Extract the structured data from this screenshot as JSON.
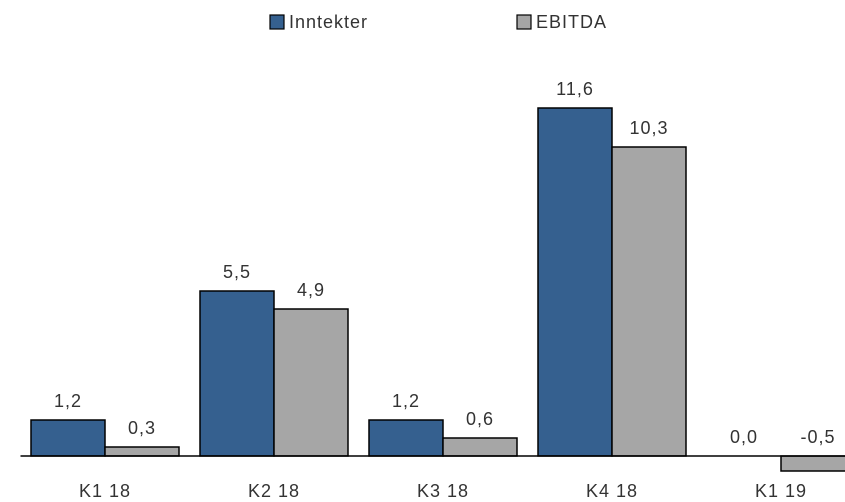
{
  "chart_data": {
    "type": "bar",
    "categories": [
      "K1 18",
      "K2 18",
      "K3 18",
      "K4 18",
      "K1 19"
    ],
    "series": [
      {
        "name": "Inntekter",
        "color": "#35608f",
        "values": [
          1.2,
          5.5,
          1.2,
          11.6,
          0.0
        ],
        "value_labels": [
          "1,2",
          "5,5",
          "1,2",
          "11,6",
          "0,0"
        ]
      },
      {
        "name": "EBITDA",
        "color": "#a6a6a6",
        "values": [
          0.3,
          4.9,
          0.6,
          10.3,
          -0.5
        ],
        "value_labels": [
          "0,3",
          "4,9",
          "0,6",
          "10,3",
          "-0,5"
        ]
      }
    ],
    "ylim": [
      -0.6,
      12.7
    ],
    "legend": "top"
  }
}
